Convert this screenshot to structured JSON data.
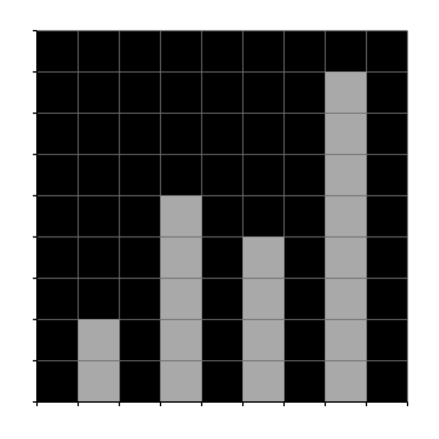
{
  "colors": {
    "plot_background": "#000000",
    "grid": "#6e6e6e",
    "bar_fill": "#a9a9a9",
    "bar_stroke": "#6e6e6e",
    "axis": "#000000",
    "page_background": "#ffffff"
  },
  "chart_data": {
    "type": "bar",
    "categories": [
      "",
      "",
      "",
      "",
      "",
      "",
      "",
      "",
      ""
    ],
    "values": [
      0,
      2,
      0,
      5,
      0,
      4,
      0,
      8,
      0
    ],
    "title": "",
    "xlabel": "",
    "ylabel": "",
    "xlim": [
      0,
      9
    ],
    "ylim": [
      0,
      9
    ],
    "x_ticks": [
      0,
      1,
      2,
      3,
      4,
      5,
      6,
      7,
      8,
      9
    ],
    "y_ticks": [
      0,
      1,
      2,
      3,
      4,
      5,
      6,
      7,
      8,
      9
    ],
    "grid": true,
    "tick_labels_shown": false,
    "legend": "none"
  }
}
